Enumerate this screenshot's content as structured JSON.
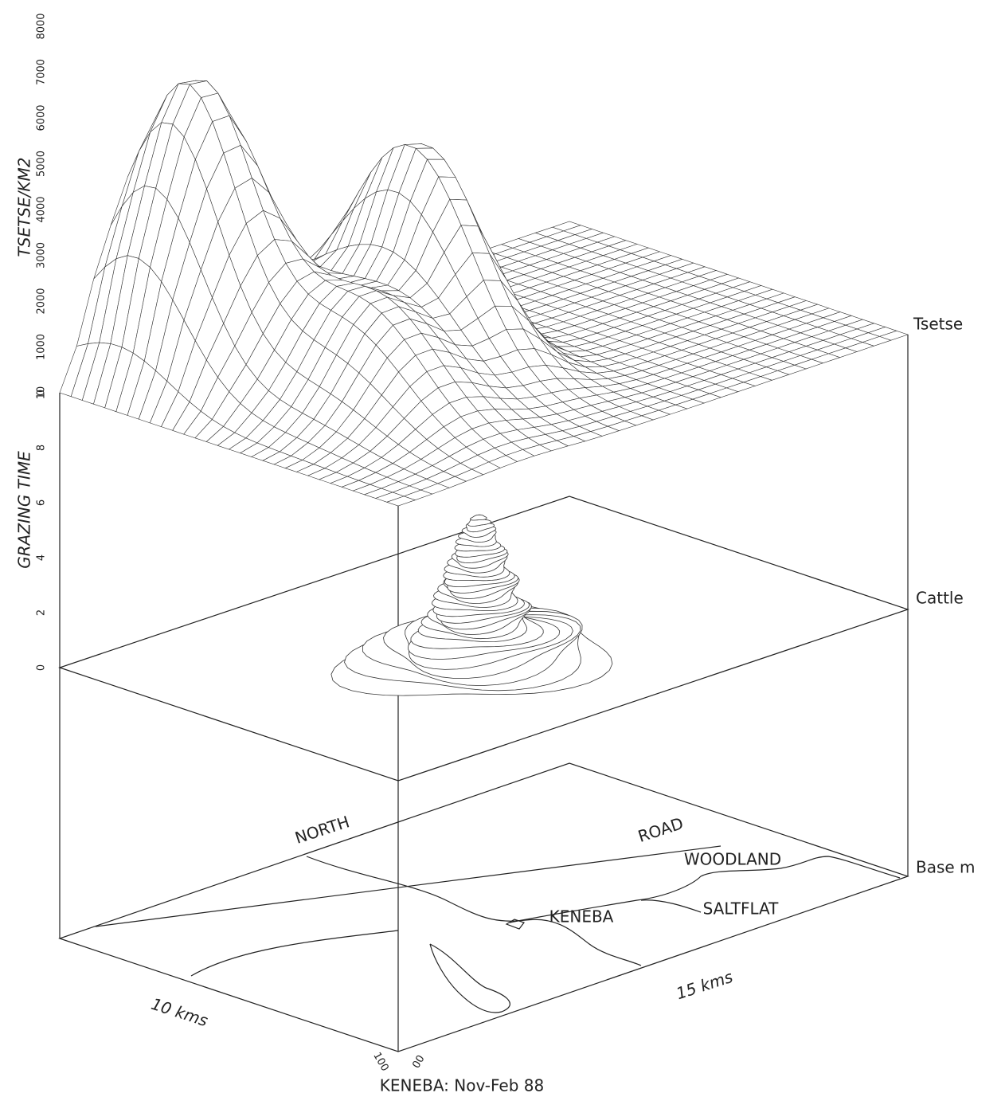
{
  "axes": {
    "tsetse": {
      "label": "TSETSE/KM2",
      "ticks": [
        "0",
        "1000",
        "2000",
        "3000",
        "4000",
        "5000",
        "6000",
        "7000",
        "8000"
      ]
    },
    "grazing": {
      "label": "GRAZING TIME",
      "ticks": [
        "0",
        "2",
        "4",
        "6",
        "8",
        "10"
      ]
    }
  },
  "layers": [
    "Tsetse",
    "Cattle",
    "Base m"
  ],
  "map_labels": [
    "NORTH",
    "ROAD",
    "WOODLAND",
    "SALTFLAT",
    "KENEBA"
  ],
  "scale_labels": [
    "10 kms",
    "15 kms"
  ],
  "corner_labels": [
    "100",
    "00"
  ],
  "caption": "KENEBA: Nov-Feb 88"
}
